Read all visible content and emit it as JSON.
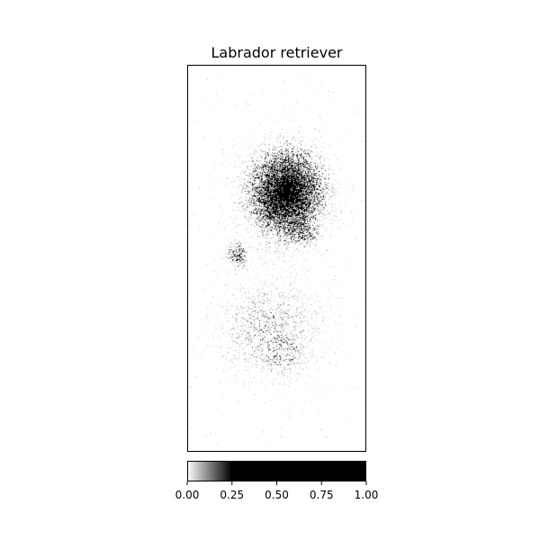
{
  "chart_data": {
    "type": "heatmap",
    "title": "Labrador retriever",
    "colormap": "gray_r",
    "colorbar": {
      "orientation": "horizontal",
      "placement": "bottom",
      "range": [
        0,
        1
      ],
      "ticks": [
        0.0,
        0.25,
        0.5,
        0.75,
        1.0
      ],
      "tick_labels": [
        "0.00",
        "0.25",
        "0.50",
        "0.75",
        "1.00"
      ],
      "saturation_value": 0.25
    },
    "axes": {
      "show_ticks": false,
      "grid": false
    },
    "hotspots": [
      {
        "name": "head",
        "cx": 0.55,
        "cy": 0.33,
        "rx": 0.17,
        "ry": 0.09,
        "intensity": 0.95
      },
      {
        "name": "neck",
        "cx": 0.62,
        "cy": 0.42,
        "rx": 0.1,
        "ry": 0.04,
        "intensity": 0.45
      },
      {
        "name": "left-edge",
        "cx": 0.28,
        "cy": 0.49,
        "rx": 0.05,
        "ry": 0.03,
        "intensity": 0.35
      },
      {
        "name": "body",
        "cx": 0.45,
        "cy": 0.68,
        "rx": 0.25,
        "ry": 0.1,
        "intensity": 0.12
      },
      {
        "name": "lower-body",
        "cx": 0.52,
        "cy": 0.74,
        "rx": 0.14,
        "ry": 0.06,
        "intensity": 0.18
      }
    ]
  }
}
